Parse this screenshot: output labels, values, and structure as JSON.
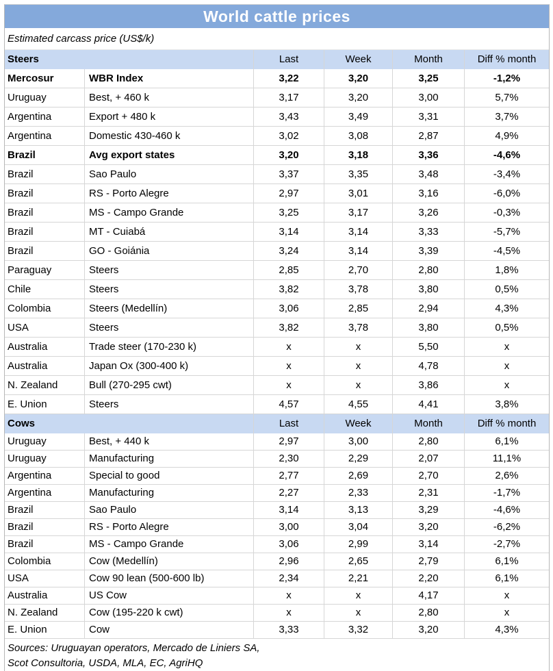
{
  "title": "World cattle prices",
  "subtitle": "Estimated carcass price (US$/k)",
  "columns": [
    "Last",
    "Week",
    "Month",
    "Diff % month"
  ],
  "colors": {
    "title_bg": "#84a9db",
    "title_text": "#ffffff",
    "section_header_bg": "#c8d9f2",
    "grid_line": "#d6d6d6",
    "text": "#000000"
  },
  "sections": [
    {
      "label": "Steers",
      "rows": [
        {
          "region": "Mercosur",
          "desc": "WBR Index",
          "last": "3,22",
          "week": "3,20",
          "month": "3,25",
          "diff": "-1,2%",
          "bold": true
        },
        {
          "region": "Uruguay",
          "desc": "Best, + 460 k",
          "last": "3,17",
          "week": "3,20",
          "month": "3,00",
          "diff": "5,7%",
          "bold": false
        },
        {
          "region": "Argentina",
          "desc": "Export + 480 k",
          "last": "3,43",
          "week": "3,49",
          "month": "3,31",
          "diff": "3,7%",
          "bold": false
        },
        {
          "region": "Argentina",
          "desc": "Domestic 430-460 k",
          "last": "3,02",
          "week": "3,08",
          "month": "2,87",
          "diff": "4,9%",
          "bold": false
        },
        {
          "region": "Brazil",
          "desc": "Avg export states",
          "last": "3,20",
          "week": "3,18",
          "month": "3,36",
          "diff": "-4,6%",
          "bold": true
        },
        {
          "region": "Brazil",
          "desc": "Sao Paulo",
          "last": "3,37",
          "week": "3,35",
          "month": "3,48",
          "diff": "-3,4%",
          "bold": false
        },
        {
          "region": "Brazil",
          "desc": "RS - Porto Alegre",
          "last": "2,97",
          "week": "3,01",
          "month": "3,16",
          "diff": "-6,0%",
          "bold": false
        },
        {
          "region": "Brazil",
          "desc": "MS - Campo Grande",
          "last": "3,25",
          "week": "3,17",
          "month": "3,26",
          "diff": "-0,3%",
          "bold": false
        },
        {
          "region": "Brazil",
          "desc": "MT - Cuiabá",
          "last": "3,14",
          "week": "3,14",
          "month": "3,33",
          "diff": "-5,7%",
          "bold": false
        },
        {
          "region": "Brazil",
          "desc": "GO - Goiánia",
          "last": "3,24",
          "week": "3,14",
          "month": "3,39",
          "diff": "-4,5%",
          "bold": false
        },
        {
          "region": "Paraguay",
          "desc": "Steers",
          "last": "2,85",
          "week": "2,70",
          "month": "2,80",
          "diff": "1,8%",
          "bold": false
        },
        {
          "region": "Chile",
          "desc": "Steers",
          "last": "3,82",
          "week": "3,78",
          "month": "3,80",
          "diff": "0,5%",
          "bold": false
        },
        {
          "region": "Colombia",
          "desc": "Steers (Medellín)",
          "last": "3,06",
          "week": "2,85",
          "month": "2,94",
          "diff": "4,3%",
          "bold": false
        },
        {
          "region": "USA",
          "desc": "Steers",
          "last": "3,82",
          "week": "3,78",
          "month": "3,80",
          "diff": "0,5%",
          "bold": false
        },
        {
          "region": "Australia",
          "desc": "Trade steer (170-230 k)",
          "last": "x",
          "week": "x",
          "month": "5,50",
          "diff": "x",
          "bold": false
        },
        {
          "region": "Australia",
          "desc": "Japan Ox (300-400 k)",
          "last": "x",
          "week": "x",
          "month": "4,78",
          "diff": "x",
          "bold": false
        },
        {
          "region": "N. Zealand",
          "desc": "Bull (270-295 cwt)",
          "last": "x",
          "week": "x",
          "month": "3,86",
          "diff": "x",
          "bold": false
        },
        {
          "region": "E. Union",
          "desc": "Steers",
          "last": "4,57",
          "week": "4,55",
          "month": "4,41",
          "diff": "3,8%",
          "bold": false
        }
      ]
    },
    {
      "label": "Cows",
      "rows": [
        {
          "region": "Uruguay",
          "desc": "Best, + 440 k",
          "last": "2,97",
          "week": "3,00",
          "month": "2,80",
          "diff": "6,1%",
          "bold": false
        },
        {
          "region": "Uruguay",
          "desc": "Manufacturing",
          "last": "2,30",
          "week": "2,29",
          "month": "2,07",
          "diff": "11,1%",
          "bold": false
        },
        {
          "region": "Argentina",
          "desc": "Special to good",
          "last": "2,77",
          "week": "2,69",
          "month": "2,70",
          "diff": "2,6%",
          "bold": false
        },
        {
          "region": "Argentina",
          "desc": "Manufacturing",
          "last": "2,27",
          "week": "2,33",
          "month": "2,31",
          "diff": "-1,7%",
          "bold": false
        },
        {
          "region": "Brazil",
          "desc": "Sao Paulo",
          "last": "3,14",
          "week": "3,13",
          "month": "3,29",
          "diff": "-4,6%",
          "bold": false
        },
        {
          "region": "Brazil",
          "desc": "RS - Porto Alegre",
          "last": "3,00",
          "week": "3,04",
          "month": "3,20",
          "diff": "-6,2%",
          "bold": false
        },
        {
          "region": "Brazil",
          "desc": "MS - Campo Grande",
          "last": "3,06",
          "week": "2,99",
          "month": "3,14",
          "diff": "-2,7%",
          "bold": false
        },
        {
          "region": "Colombia",
          "desc": "Cow (Medellín)",
          "last": "2,96",
          "week": "2,65",
          "month": "2,79",
          "diff": "6,1%",
          "bold": false
        },
        {
          "region": "USA",
          "desc": "Cow 90 lean (500-600 lb)",
          "last": "2,34",
          "week": "2,21",
          "month": "2,20",
          "diff": "6,1%",
          "bold": false
        },
        {
          "region": "Australia",
          "desc": "US Cow",
          "last": "x",
          "week": "x",
          "month": "4,17",
          "diff": "x",
          "bold": false
        },
        {
          "region": "N. Zealand",
          "desc": "Cow (195-220 k cwt)",
          "last": "x",
          "week": "x",
          "month": "2,80",
          "diff": "x",
          "bold": false
        },
        {
          "region": "E. Union",
          "desc": "Cow",
          "last": "3,33",
          "week": "3,32",
          "month": "3,20",
          "diff": "4,3%",
          "bold": false
        }
      ]
    }
  ],
  "sources": {
    "line1": "Sources: Uruguayan operators, Mercado de Liniers SA,",
    "line2": "Scot Consultoria, USDA, MLA, EC, AgriHQ"
  }
}
